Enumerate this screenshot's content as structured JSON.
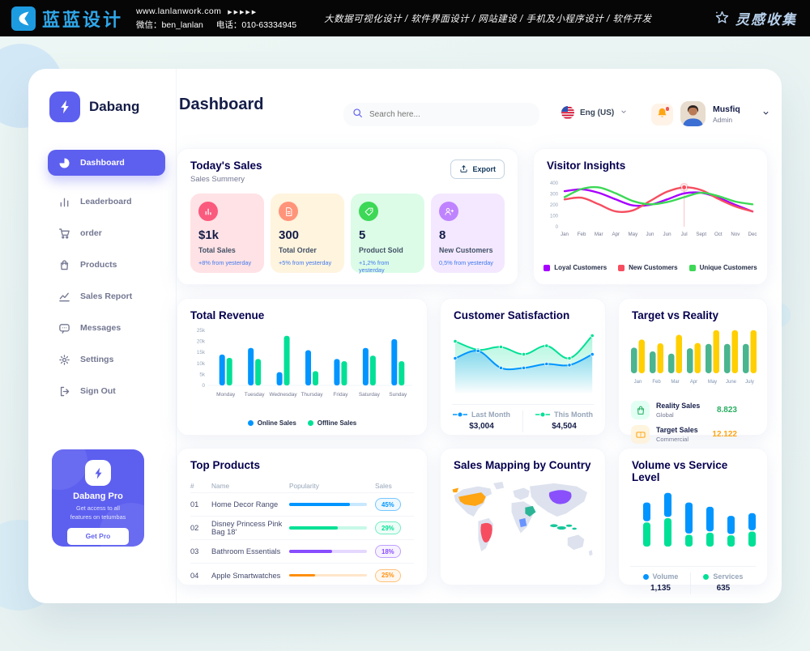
{
  "banner": {
    "brand": "蓝蓝设计",
    "website": "www.lanlanwork.com",
    "arrows": "▶▶▶▶▶",
    "wechat": "微信：ben_lanlan",
    "phone": "电话：010-63334945",
    "services": "大数据可视化设计 / 软件界面设计 / 网站建设 / 手机及小程序设计 / 软件开发",
    "collect_logo": "灵感收集"
  },
  "sidebar": {
    "brand": "Dabang",
    "items": [
      {
        "id": "dashboard",
        "label": "Dashboard",
        "icon": "pie-icon",
        "active": true
      },
      {
        "id": "leaderboard",
        "label": "Leaderboard",
        "icon": "bars-icon",
        "active": false
      },
      {
        "id": "order",
        "label": "order",
        "icon": "cart-icon",
        "active": false
      },
      {
        "id": "products",
        "label": "Products",
        "icon": "bag-icon",
        "active": false
      },
      {
        "id": "sales-report",
        "label": "Sales Report",
        "icon": "line-icon",
        "active": false
      },
      {
        "id": "messages",
        "label": "Messages",
        "icon": "message-icon",
        "active": false
      },
      {
        "id": "settings",
        "label": "Settings",
        "icon": "gear-icon",
        "active": false
      },
      {
        "id": "sign-out",
        "label": "Sign Out",
        "icon": "signout-icon",
        "active": false
      }
    ],
    "pro": {
      "title": "Dabang Pro",
      "line1": "Get access to all",
      "line2": "features on tetumbas",
      "button": "Get Pro"
    }
  },
  "header": {
    "title": "Dashboard",
    "search_placeholder": "Search here...",
    "language": "Eng (US)",
    "user_name": "Musfiq",
    "user_role": "Admin"
  },
  "todays_sales": {
    "title": "Today's Sales",
    "subtitle": "Sales Summery",
    "export_label": "Export",
    "stats": [
      {
        "value": "$1k",
        "label": "Total Sales",
        "delta": "+8% from yesterday",
        "bg": "#FFE2E5",
        "icon_bg": "#FA5A7D",
        "icon": "sales-icon"
      },
      {
        "value": "300",
        "label": "Total Order",
        "delta": "+5% from yesterday",
        "bg": "#FFF4DE",
        "icon_bg": "#FF947A",
        "icon": "order-icon"
      },
      {
        "value": "5",
        "label": "Product Sold",
        "delta": "+1,2% from yesterday",
        "bg": "#DCFCE7",
        "icon_bg": "#3CD856",
        "icon": "tag-icon"
      },
      {
        "value": "8",
        "label": "New Customers",
        "delta": "0,5% from yesterday",
        "bg": "#F3E8FF",
        "icon_bg": "#BF83FF",
        "icon": "customers-icon"
      }
    ]
  },
  "charts": {
    "visitor_insights": {
      "title": "Visitor Insights",
      "type": "line",
      "x": [
        "Jan",
        "Feb",
        "Mar",
        "Apr",
        "May",
        "Jun",
        "Jun",
        "Jul",
        "Sept",
        "Oct",
        "Nov",
        "Dec"
      ],
      "y_ticks": [
        0,
        100,
        200,
        300,
        400
      ],
      "ylim": [
        0,
        400
      ],
      "series": [
        {
          "name": "Loyal Customers",
          "color": "#A700FF",
          "values": [
            325,
            342,
            310,
            250,
            195,
            200,
            250,
            305,
            310,
            265,
            200,
            140
          ]
        },
        {
          "name": "New Customers",
          "color": "#F64E60",
          "values": [
            250,
            265,
            205,
            140,
            150,
            235,
            320,
            360,
            335,
            255,
            185,
            140
          ]
        },
        {
          "name": "Unique Customers",
          "color": "#3CD856",
          "values": [
            270,
            345,
            360,
            305,
            235,
            205,
            225,
            270,
            310,
            280,
            230,
            205
          ]
        }
      ],
      "marker": {
        "series": 1,
        "index": 7,
        "value": 360
      }
    },
    "total_revenue": {
      "title": "Total Revenue",
      "type": "bar",
      "categories": [
        "Monday",
        "Tuesday",
        "Wednesday",
        "Thursday",
        "Friday",
        "Saturday",
        "Sunday"
      ],
      "y_tick_labels": [
        "0",
        "5k",
        "10k",
        "15k",
        "20k",
        "25k"
      ],
      "ylim": [
        0,
        25
      ],
      "series": [
        {
          "name": "Online Sales",
          "color": "#0095FF",
          "values": [
            14,
            17,
            6,
            16,
            12,
            17,
            21
          ]
        },
        {
          "name": "Offline Sales",
          "color": "#00E096",
          "values": [
            12.5,
            12,
            22.5,
            6.5,
            11,
            13.5,
            11
          ]
        }
      ]
    },
    "customer_satisfaction": {
      "title": "Customer Satisfaction",
      "type": "area",
      "ylim": [
        0,
        100
      ],
      "series": [
        {
          "name": "Last Month",
          "total": "$3,004",
          "color": "#0095FF",
          "values": [
            55,
            68,
            38,
            38,
            45,
            43,
            62
          ]
        },
        {
          "name": "This Month",
          "total": "$4,504",
          "color": "#00E096",
          "values": [
            85,
            70,
            75,
            62,
            77,
            55,
            95
          ]
        }
      ]
    },
    "target_vs_reality": {
      "title": "Target vs Reality",
      "type": "bar",
      "categories": [
        "Jan",
        "Feb",
        "Mar",
        "Apr",
        "May",
        "June",
        "July"
      ],
      "ylim": [
        0,
        14
      ],
      "series": [
        {
          "name": "Reality Sales",
          "color": "#4AB58E",
          "values": [
            8.2,
            7,
            6.3,
            8,
            9.4,
            9.4,
            9.4
          ]
        },
        {
          "name": "Target Sales",
          "color": "#FFCF00",
          "values": [
            10.8,
            9.6,
            12.3,
            9.7,
            13.8,
            13.8,
            13.8
          ]
        }
      ],
      "info": [
        {
          "label": "Reality Sales",
          "sub": "Global",
          "value": "8.823",
          "color": "#27AE60",
          "icon_bg": "#E2FFF3",
          "icon": "bag2-icon"
        },
        {
          "label": "Target Sales",
          "sub": "Commercial",
          "value": "12.122",
          "color": "#FFA412",
          "icon_bg": "#FFF4DE",
          "icon": "ticket-icon"
        }
      ]
    },
    "volume_vs_service": {
      "title": "Volume vs Service Level",
      "type": "stacked-bar",
      "ylim": [
        0,
        100
      ],
      "series": [
        {
          "name": "Volume",
          "total": "1,135",
          "color": "#0095FF",
          "values": [
            35,
            45,
            58,
            46,
            34,
            32
          ]
        },
        {
          "name": "Services",
          "total": "635",
          "color": "#00E096",
          "values": [
            45,
            53,
            22,
            26,
            21,
            28
          ]
        }
      ]
    }
  },
  "top_products": {
    "title": "Top Products",
    "columns": [
      "#",
      "Name",
      "Popularity",
      "Sales"
    ],
    "rows": [
      {
        "num": "01",
        "name": "Home Decor Range",
        "popularity": 78,
        "sales": "45%",
        "color": "#0095FF"
      },
      {
        "num": "02",
        "name": "Disney Princess Pink Bag 18'",
        "popularity": 62,
        "sales": "29%",
        "color": "#00E096"
      },
      {
        "num": "03",
        "name": "Bathroom Essentials",
        "popularity": 55,
        "sales": "18%",
        "color": "#884DFF"
      },
      {
        "num": "04",
        "name": "Apple Smartwatches",
        "popularity": 33,
        "sales": "25%",
        "color": "#FF8F0D"
      }
    ]
  },
  "sales_map": {
    "title": "Sales Mapping by Country",
    "countries": [
      {
        "id": "usa",
        "name": "United States",
        "color": "#FFA412"
      },
      {
        "id": "brazil",
        "name": "Brazil",
        "color": "#F64E60"
      },
      {
        "id": "china",
        "name": "China",
        "color": "#8950FC"
      },
      {
        "id": "saudi",
        "name": "Saudi Arabia",
        "color": "#2BB596"
      },
      {
        "id": "congo",
        "name": "Congo",
        "color": "#6993FF"
      },
      {
        "id": "indonesia",
        "name": "Indonesia",
        "color": "#16C79A"
      }
    ]
  }
}
